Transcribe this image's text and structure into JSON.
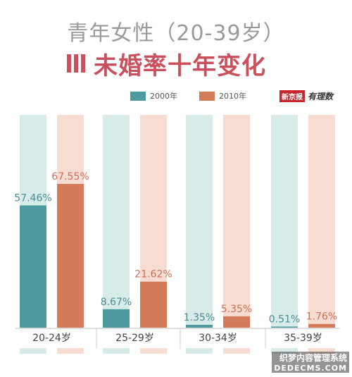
{
  "header": {
    "title_line1": "青年女性（20-39岁）",
    "title_line2": "未婚率十年变化"
  },
  "legend": {
    "series_2000": "2000年",
    "series_2010": "2010年"
  },
  "source": {
    "paper": "新京报",
    "column": "有理数"
  },
  "watermark": {
    "line1": "织梦内容管理系统",
    "line2": "DEDECMS.COM"
  },
  "colors": {
    "series_2000": "#4d9aa1",
    "series_2010": "#d47c5a",
    "track_2000": "#d7ebe9",
    "track_2010": "#f7ddd1",
    "title_accent": "#c9505c"
  },
  "chart_data": {
    "type": "bar",
    "categories": [
      "20-24岁",
      "25-29岁",
      "30-34岁",
      "35-39岁"
    ],
    "series": [
      {
        "name": "2000年",
        "values": [
          57.46,
          8.67,
          1.35,
          0.51
        ]
      },
      {
        "name": "2010年",
        "values": [
          67.55,
          21.62,
          5.35,
          1.76
        ]
      }
    ],
    "value_labels": [
      [
        "57.46%",
        "8.67%",
        "1.35%",
        "0.51%"
      ],
      [
        "67.55%",
        "21.62%",
        "5.35%",
        "1.76%"
      ]
    ],
    "unit": "%",
    "ylim": [
      0,
      100
    ],
    "grid": false,
    "legend_position": "top"
  }
}
